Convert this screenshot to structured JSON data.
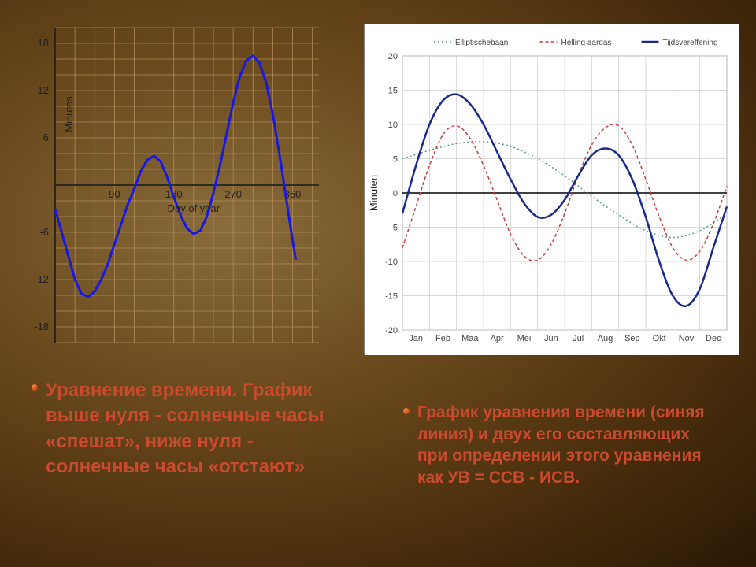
{
  "chart_left": {
    "type": "line",
    "title": null,
    "xlabel": "Day of year",
    "ylabel": "Minutes",
    "xlim": [
      0,
      400
    ],
    "ylim": [
      -20,
      20
    ],
    "xticks": [
      90,
      180,
      270,
      360
    ],
    "yticks": [
      -18,
      -12,
      -6,
      6,
      12,
      18
    ],
    "grid_color": "#b08a5a",
    "grid_step_x": 30,
    "grid_step_y": 2,
    "axis_color": "#222222",
    "line_color": "#1818e0",
    "line_width": 3,
    "background_color": "transparent",
    "label_fontsize": 13,
    "tick_fontsize": 13,
    "series": [
      {
        "x": 0,
        "y": -3
      },
      {
        "x": 10,
        "y": -6
      },
      {
        "x": 20,
        "y": -9
      },
      {
        "x": 30,
        "y": -12
      },
      {
        "x": 40,
        "y": -13.8
      },
      {
        "x": 50,
        "y": -14.2
      },
      {
        "x": 60,
        "y": -13.5
      },
      {
        "x": 70,
        "y": -12
      },
      {
        "x": 80,
        "y": -10
      },
      {
        "x": 90,
        "y": -7.5
      },
      {
        "x": 100,
        "y": -5
      },
      {
        "x": 110,
        "y": -2.5
      },
      {
        "x": 120,
        "y": -0.5
      },
      {
        "x": 130,
        "y": 1.8
      },
      {
        "x": 140,
        "y": 3.2
      },
      {
        "x": 150,
        "y": 3.7
      },
      {
        "x": 160,
        "y": 3
      },
      {
        "x": 170,
        "y": 1
      },
      {
        "x": 180,
        "y": -1.5
      },
      {
        "x": 190,
        "y": -3.8
      },
      {
        "x": 200,
        "y": -5.5
      },
      {
        "x": 210,
        "y": -6.2
      },
      {
        "x": 220,
        "y": -5.8
      },
      {
        "x": 230,
        "y": -4
      },
      {
        "x": 240,
        "y": -1
      },
      {
        "x": 250,
        "y": 2.5
      },
      {
        "x": 260,
        "y": 6.5
      },
      {
        "x": 270,
        "y": 10.5
      },
      {
        "x": 280,
        "y": 13.8
      },
      {
        "x": 290,
        "y": 15.8
      },
      {
        "x": 300,
        "y": 16.4
      },
      {
        "x": 310,
        "y": 15.5
      },
      {
        "x": 320,
        "y": 13
      },
      {
        "x": 330,
        "y": 9
      },
      {
        "x": 340,
        "y": 4
      },
      {
        "x": 350,
        "y": -1.5
      },
      {
        "x": 360,
        "y": -7
      },
      {
        "x": 365,
        "y": -9.5
      }
    ]
  },
  "chart_right": {
    "type": "line",
    "background_color": "#ffffff",
    "plot_bg_color": "#ffffff",
    "border_color": "#888888",
    "grid_color": "#cccccc",
    "axis_color": "#000000",
    "ylabel": "Minuten",
    "xlim": [
      0,
      12
    ],
    "ylim": [
      -20,
      20
    ],
    "xticks": [
      "Jan",
      "Feb",
      "Maa",
      "Apr",
      "Mei",
      "Jun",
      "Jul",
      "Aug",
      "Sep",
      "Okt",
      "Nov",
      "Dec"
    ],
    "yticks": [
      -20,
      -15,
      -10,
      -5,
      0,
      5,
      10,
      15,
      20
    ],
    "ytick_labels": [
      "-20",
      "-15",
      "-10",
      "-5",
      "0",
      "5",
      "10",
      "15",
      "20"
    ],
    "label_fontsize": 11,
    "tick_fontsize": 10,
    "legend": {
      "position": "top",
      "items": [
        {
          "label": "Elliptischebaan",
          "color": "#5a9a8a",
          "dash": "2,3",
          "width": 1.5
        },
        {
          "label": "Helling aardas",
          "color": "#c04040",
          "dash": "4,3",
          "width": 1.5
        },
        {
          "label": "Tijdsvereffening",
          "color": "#1a2a8a",
          "dash": null,
          "width": 2.5
        }
      ]
    },
    "series_ellip": [
      {
        "x": 0,
        "y": 5
      },
      {
        "x": 1,
        "y": 6.2
      },
      {
        "x": 2,
        "y": 7.2
      },
      {
        "x": 3,
        "y": 7.5
      },
      {
        "x": 4,
        "y": 6.8
      },
      {
        "x": 5,
        "y": 5
      },
      {
        "x": 6,
        "y": 2.5
      },
      {
        "x": 7,
        "y": -0.5
      },
      {
        "x": 8,
        "y": -3.2
      },
      {
        "x": 9,
        "y": -5.5
      },
      {
        "x": 10,
        "y": -6.5
      },
      {
        "x": 11,
        "y": -5.5
      },
      {
        "x": 12,
        "y": -3
      }
    ],
    "series_axis": [
      {
        "x": 0,
        "y": -8
      },
      {
        "x": 0.5,
        "y": -2
      },
      {
        "x": 1,
        "y": 4
      },
      {
        "x": 1.5,
        "y": 8.5
      },
      {
        "x": 2,
        "y": 9.8
      },
      {
        "x": 2.5,
        "y": 8
      },
      {
        "x": 3,
        "y": 4
      },
      {
        "x": 3.5,
        "y": -1
      },
      {
        "x": 4,
        "y": -6
      },
      {
        "x": 4.5,
        "y": -9.2
      },
      {
        "x": 5,
        "y": -9.8
      },
      {
        "x": 5.5,
        "y": -7.5
      },
      {
        "x": 6,
        "y": -3
      },
      {
        "x": 6.5,
        "y": 2.5
      },
      {
        "x": 7,
        "y": 7
      },
      {
        "x": 7.5,
        "y": 9.5
      },
      {
        "x": 8,
        "y": 9.8
      },
      {
        "x": 8.5,
        "y": 7
      },
      {
        "x": 9,
        "y": 2
      },
      {
        "x": 9.5,
        "y": -3.5
      },
      {
        "x": 10,
        "y": -8
      },
      {
        "x": 10.5,
        "y": -9.8
      },
      {
        "x": 11,
        "y": -8.5
      },
      {
        "x": 11.5,
        "y": -4.5
      },
      {
        "x": 12,
        "y": 1
      }
    ],
    "series_eot": [
      {
        "x": 0,
        "y": -3
      },
      {
        "x": 0.5,
        "y": 4
      },
      {
        "x": 1,
        "y": 10
      },
      {
        "x": 1.5,
        "y": 13.5
      },
      {
        "x": 2,
        "y": 14.4
      },
      {
        "x": 2.5,
        "y": 13
      },
      {
        "x": 3,
        "y": 10
      },
      {
        "x": 3.5,
        "y": 6
      },
      {
        "x": 4,
        "y": 2
      },
      {
        "x": 4.5,
        "y": -1.5
      },
      {
        "x": 5,
        "y": -3.5
      },
      {
        "x": 5.5,
        "y": -3.2
      },
      {
        "x": 6,
        "y": -1
      },
      {
        "x": 6.5,
        "y": 2.5
      },
      {
        "x": 7,
        "y": 5.5
      },
      {
        "x": 7.5,
        "y": 6.5
      },
      {
        "x": 8,
        "y": 5.5
      },
      {
        "x": 8.5,
        "y": 2
      },
      {
        "x": 9,
        "y": -3.5
      },
      {
        "x": 9.5,
        "y": -10
      },
      {
        "x": 10,
        "y": -15
      },
      {
        "x": 10.5,
        "y": -16.5
      },
      {
        "x": 11,
        "y": -14
      },
      {
        "x": 11.5,
        "y": -8
      },
      {
        "x": 12,
        "y": -2
      }
    ]
  },
  "caption_left": "Уравнение времени. График выше нуля - солнечные часы «спешат», ниже нуля - солнечные часы «отстают»",
  "caption_right": "График уравнения времени (синяя линия) и двух его составляющих при определении этого уравнения как УВ = ССВ - ИСВ."
}
